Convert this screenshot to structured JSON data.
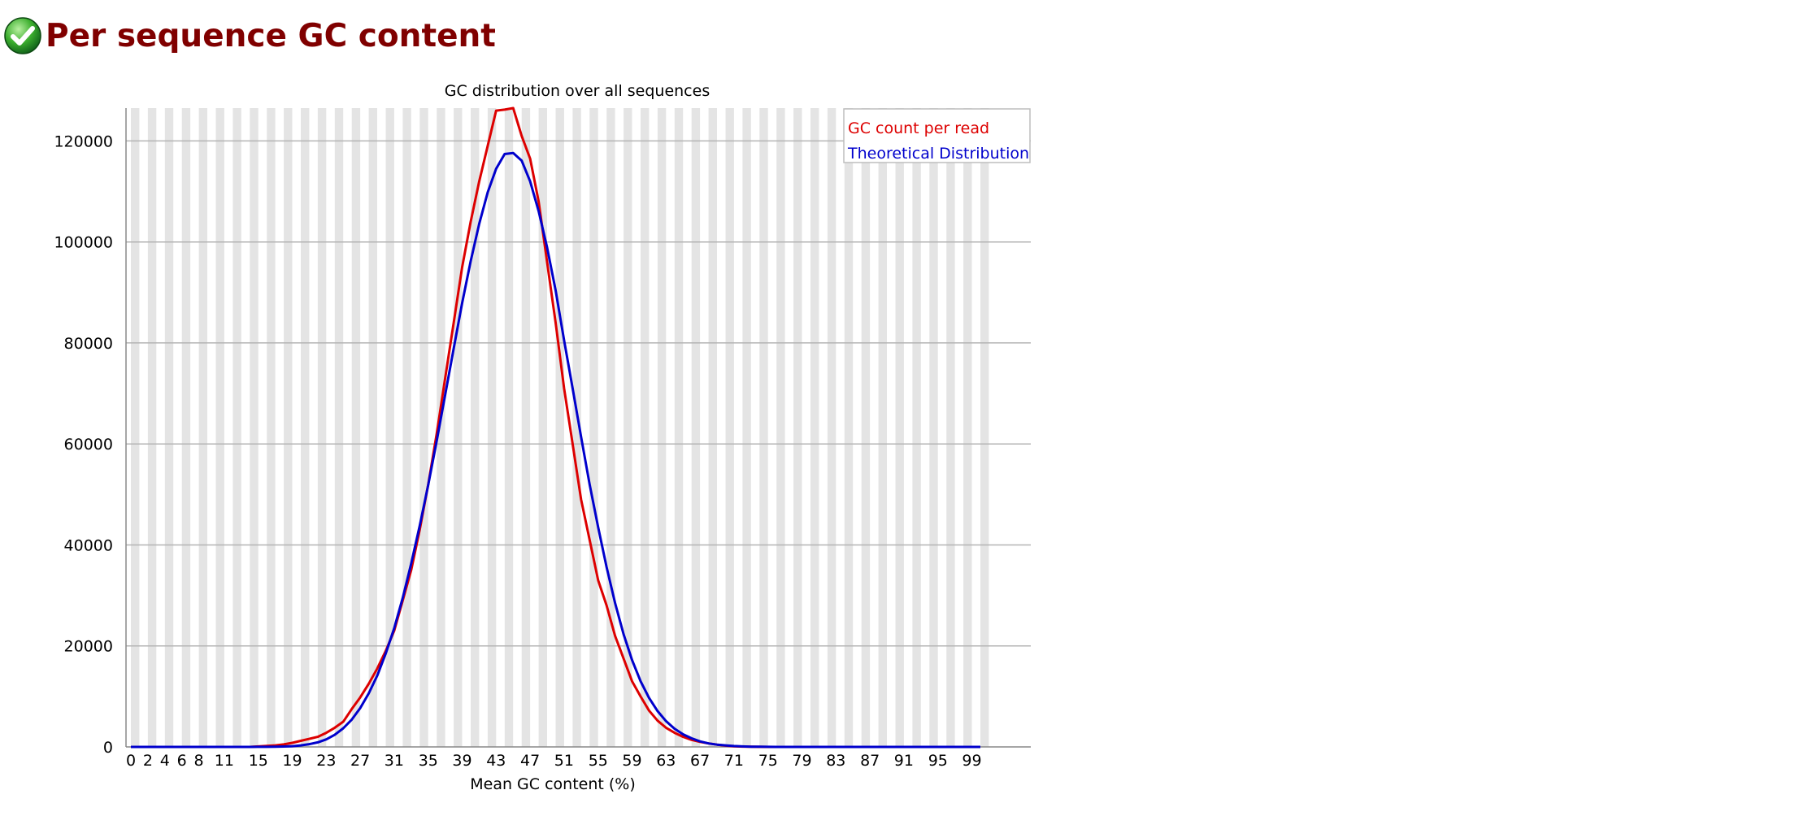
{
  "module": {
    "status": "pass",
    "status_icon": "check-circle-icon",
    "status_color": "#2e9e2e",
    "title": "Per sequence GC content"
  },
  "chart_data": {
    "type": "line",
    "title": "GC distribution over all sequences",
    "xlabel": "Mean GC content (%)",
    "ylabel": "",
    "x_tick_labels": [
      "0",
      "2",
      "4",
      "6",
      "8",
      "11",
      "15",
      "19",
      "23",
      "27",
      "31",
      "35",
      "39",
      "43",
      "47",
      "51",
      "55",
      "59",
      "63",
      "67",
      "71",
      "75",
      "79",
      "83",
      "87",
      "91",
      "95",
      "99"
    ],
    "y_tick_labels": [
      "0",
      "20000",
      "40000",
      "60000",
      "80000",
      "100000",
      "120000"
    ],
    "xlim": [
      0,
      100
    ],
    "ylim": [
      0,
      126500
    ],
    "grid": true,
    "legend_position": "top-right",
    "x": [
      0,
      1,
      2,
      3,
      4,
      5,
      6,
      7,
      8,
      9,
      10,
      11,
      12,
      13,
      14,
      15,
      16,
      17,
      18,
      19,
      20,
      21,
      22,
      23,
      24,
      25,
      26,
      27,
      28,
      29,
      30,
      31,
      32,
      33,
      34,
      35,
      36,
      37,
      38,
      39,
      40,
      41,
      42,
      43,
      44,
      45,
      46,
      47,
      48,
      49,
      50,
      51,
      52,
      53,
      54,
      55,
      56,
      57,
      58,
      59,
      60,
      61,
      62,
      63,
      64,
      65,
      66,
      67,
      68,
      69,
      70,
      71,
      72,
      73,
      74,
      75,
      76,
      77,
      78,
      79,
      80,
      81,
      82,
      83,
      84,
      85,
      86,
      87,
      88,
      89,
      90,
      91,
      92,
      93,
      94,
      95,
      96,
      97,
      98,
      99,
      100
    ],
    "series": [
      {
        "name": "GC count per read",
        "color": "#dd0000",
        "values": [
          0,
          0,
          0,
          0,
          0,
          0,
          0,
          0,
          0,
          0,
          0,
          0,
          0,
          0,
          0,
          100,
          200,
          300,
          500,
          800,
          1200,
          1600,
          2000,
          2800,
          3800,
          5000,
          7500,
          9800,
          12500,
          15500,
          19000,
          23000,
          29000,
          35000,
          43000,
          52000,
          62000,
          73000,
          84000,
          95000,
          104000,
          112000,
          119000,
          126000,
          126200,
          126500,
          121000,
          116500,
          108000,
          96000,
          84000,
          71000,
          60000,
          49000,
          41000,
          33000,
          28000,
          22000,
          17500,
          13000,
          10000,
          7200,
          5200,
          3800,
          2800,
          2000,
          1400,
          1000,
          700,
          450,
          250,
          120,
          60,
          30,
          10,
          0,
          0,
          0,
          0,
          0,
          0,
          0,
          0,
          0,
          0,
          0,
          0,
          0,
          0,
          0,
          0,
          0,
          0,
          0,
          0,
          0,
          0,
          0,
          0,
          0,
          0
        ]
      },
      {
        "name": "Theoretical Distribution",
        "color": "#0000cc",
        "values": [
          0,
          0,
          0,
          0,
          0,
          0,
          0,
          0,
          0,
          0,
          0,
          0,
          0,
          0,
          0,
          10,
          20,
          40,
          80,
          150,
          300,
          550,
          900,
          1500,
          2400,
          3700,
          5400,
          7700,
          10600,
          14100,
          18500,
          23500,
          29500,
          36300,
          43800,
          51900,
          60600,
          69700,
          78900,
          87900,
          96200,
          103600,
          109800,
          114500,
          117400,
          117600,
          116100,
          112000,
          106100,
          98900,
          90400,
          80500,
          71000,
          61400,
          52000,
          43500,
          35600,
          28500,
          22300,
          17200,
          13000,
          9700,
          7100,
          5100,
          3600,
          2500,
          1700,
          1100,
          700,
          450,
          300,
          180,
          100,
          55,
          30,
          15,
          0,
          0,
          0,
          0,
          0,
          0,
          0,
          0,
          0,
          0,
          0,
          0,
          0,
          0,
          0,
          0,
          0,
          0,
          0,
          0,
          0,
          0,
          0,
          0,
          0
        ]
      }
    ]
  },
  "colors": {
    "title": "#800000",
    "stripe": "#e4e4e4",
    "gridline": "#b4b4b4",
    "series1": "#dd0000",
    "series2": "#0000cc"
  }
}
